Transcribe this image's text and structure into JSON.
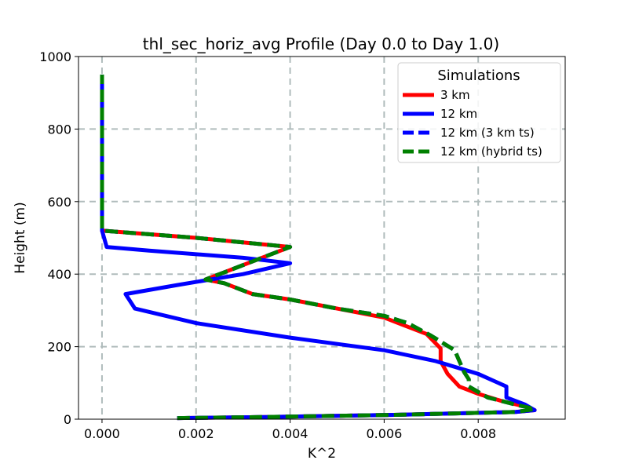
{
  "chart_data": {
    "type": "line",
    "title": "thl_sec_horiz_avg Profile (Day 0.0 to Day 1.0)",
    "xlabel": "K^2",
    "ylabel": "Height (m)",
    "xlim": [
      -0.0005,
      0.00985
    ],
    "ylim": [
      0,
      1000
    ],
    "xticks": [
      0.0,
      0.002,
      0.004,
      0.006,
      0.008
    ],
    "xtick_labels": [
      "0.000",
      "0.002",
      "0.004",
      "0.006",
      "0.008"
    ],
    "yticks": [
      0,
      200,
      400,
      600,
      800,
      1000
    ],
    "ytick_labels": [
      "0",
      "200",
      "400",
      "600",
      "800",
      "1000"
    ],
    "grid": true,
    "legend": {
      "title": "Simulations",
      "placement": "upper-right"
    },
    "series": [
      {
        "name": "3 km",
        "color": "#ff0000",
        "dash": "solid",
        "x": [
          0.0016,
          0.0035,
          0.0062,
          0.0088,
          0.0092,
          0.009,
          0.0085,
          0.008,
          0.0076,
          0.00735,
          0.0072,
          0.0072,
          0.0069,
          0.0063,
          0.006,
          0.005,
          0.004,
          0.0032,
          0.0026,
          0.0022,
          0.0027,
          0.0034,
          0.004,
          0.002,
          0.0,
          0.0,
          0.0
        ],
        "y": [
          3,
          6,
          12,
          20,
          25,
          35,
          50,
          70,
          90,
          125,
          160,
          195,
          235,
          265,
          280,
          305,
          330,
          345,
          375,
          385,
          410,
          445,
          475,
          500,
          520,
          600,
          950
        ]
      },
      {
        "name": "12 km",
        "color": "#0000ff",
        "dash": "solid",
        "x": [
          0.0016,
          0.0035,
          0.0062,
          0.0088,
          0.0092,
          0.009,
          0.0086,
          0.0086,
          0.008,
          0.0071,
          0.006,
          0.004,
          0.002,
          0.0007,
          0.0005,
          0.0016,
          0.003,
          0.004,
          0.003,
          0.001,
          0.0001,
          0.0,
          0.0,
          0.0
        ],
        "y": [
          3,
          6,
          12,
          20,
          25,
          40,
          60,
          90,
          125,
          160,
          190,
          225,
          265,
          305,
          345,
          370,
          400,
          430,
          445,
          465,
          475,
          520,
          600,
          950
        ]
      },
      {
        "name": "12 km (3 km ts)",
        "color": "#0000ff",
        "dash": "dashed",
        "x": [
          0.0016,
          0.0035,
          0.0062,
          0.0088,
          0.0092,
          0.0088,
          0.0082,
          0.0078,
          0.0078,
          0.0077,
          0.0075,
          0.007,
          0.0065,
          0.006,
          0.005,
          0.004,
          0.0032,
          0.0026,
          0.0022,
          0.0027,
          0.0034,
          0.004,
          0.002,
          0.0,
          0.0,
          0.0
        ],
        "y": [
          3,
          6,
          12,
          20,
          28,
          40,
          60,
          90,
          110,
          130,
          190,
          230,
          265,
          285,
          305,
          330,
          345,
          375,
          385,
          410,
          445,
          475,
          500,
          520,
          600,
          950
        ]
      },
      {
        "name": "12 km (hybrid ts)",
        "color": "#008000",
        "dash": "dashed",
        "x": [
          0.0016,
          0.0035,
          0.0062,
          0.0088,
          0.0092,
          0.0088,
          0.0082,
          0.0078,
          0.0078,
          0.0077,
          0.0075,
          0.007,
          0.0065,
          0.006,
          0.005,
          0.004,
          0.0032,
          0.0026,
          0.0022,
          0.0027,
          0.0034,
          0.004,
          0.002,
          0.0,
          0.0,
          0.0
        ],
        "y": [
          3,
          6,
          12,
          20,
          28,
          40,
          60,
          90,
          110,
          130,
          190,
          230,
          265,
          285,
          305,
          330,
          345,
          375,
          385,
          410,
          445,
          475,
          500,
          520,
          600,
          950
        ]
      }
    ]
  }
}
